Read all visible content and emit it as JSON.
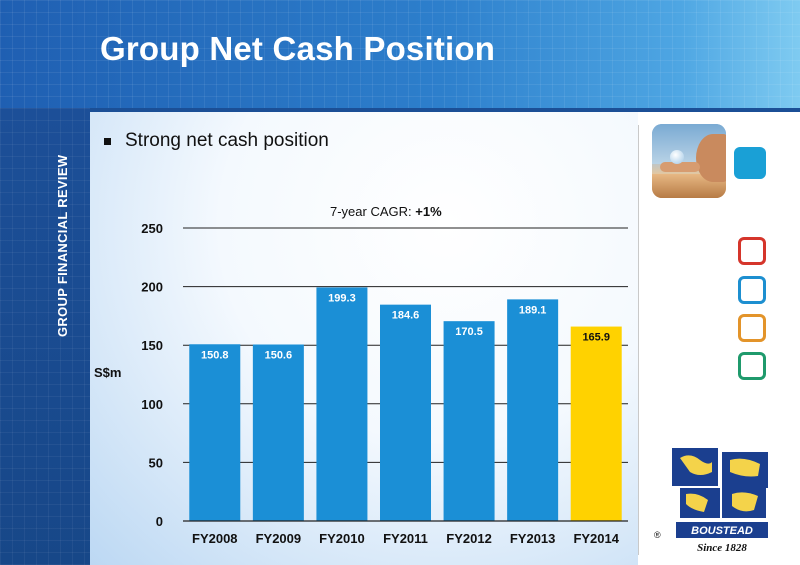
{
  "slide": {
    "title": "Group Net Cash Position",
    "sidebar_label": "GROUP FINANCIAL REVIEW",
    "bullet": "Strong net cash position",
    "logo_name": "BOUSTEAD",
    "logo_tagline": "Since 1828",
    "logo_mark": "®"
  },
  "colors": {
    "bar": "#1b8fd6",
    "highlight": "#ffd200",
    "sq_red": "#d5352b",
    "sq_blue": "#1d8fd0",
    "sq_orange": "#e3942a",
    "sq_green": "#1f9a6c"
  },
  "icons": [
    "woman-water-drop-photo",
    "teal-square-icon",
    "boustead-globe-logo"
  ],
  "chart_data": {
    "type": "bar",
    "categories": [
      "FY2008",
      "FY2009",
      "FY2010",
      "FY2011",
      "FY2012",
      "FY2013",
      "FY2014"
    ],
    "values": [
      150.8,
      150.6,
      199.3,
      184.6,
      170.5,
      189.1,
      165.9
    ],
    "value_labels": [
      "150.8",
      "150.6",
      "199.3",
      "184.6",
      "170.5",
      "189.1",
      "165.9"
    ],
    "highlight_index": 6,
    "ylabel": "S$m",
    "ylim": [
      0,
      250
    ],
    "yticks": [
      0,
      50,
      100,
      150,
      200,
      250
    ],
    "gridlines": true,
    "annotation_prefix": "7-year CAGR: ",
    "annotation_value": "+1%"
  }
}
